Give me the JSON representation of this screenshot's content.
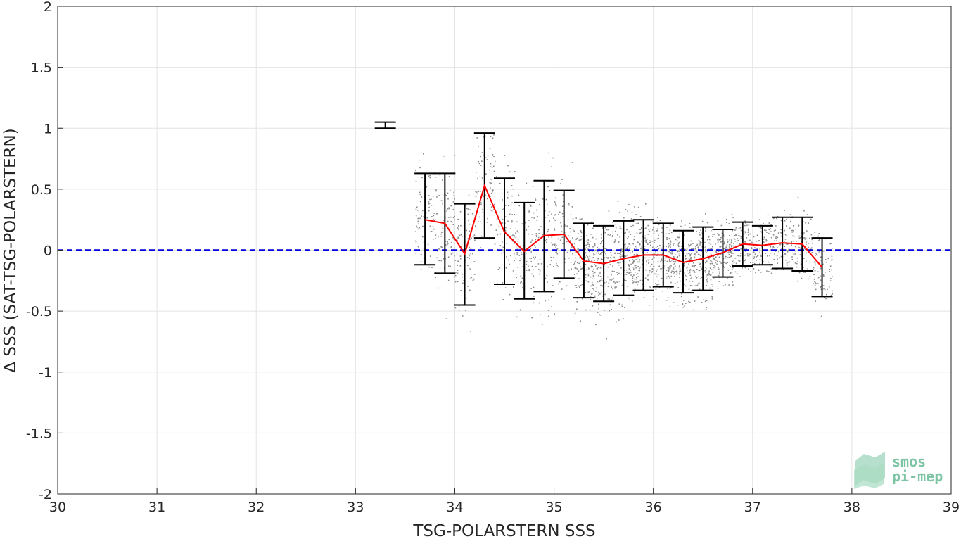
{
  "chart_data": {
    "type": "scatter",
    "xlabel": "TSG-POLARSTERN SSS",
    "ylabel": "Δ SSS (SAT-TSG-POLARSTERN)",
    "xlim": [
      30,
      39
    ],
    "ylim": [
      -2,
      2
    ],
    "x_ticks": [
      "30",
      "31",
      "32",
      "33",
      "34",
      "35",
      "36",
      "37",
      "38",
      "39"
    ],
    "y_ticks": [
      "-2",
      "-1.5",
      "-1",
      "-0.5",
      "0",
      "0.5",
      "1",
      "1.5",
      "2"
    ],
    "grid": true,
    "zero_line": {
      "y": 0,
      "color": "#0000dd",
      "style": "dashed"
    },
    "scatter_color": "#8c8c8c",
    "mean_line_color": "#ff0000",
    "errorbar_color": "#000000",
    "binned_stats": [
      {
        "x": 33.3,
        "mean": 1.02,
        "low": 1.0,
        "high": 1.05
      },
      {
        "x": 33.7,
        "mean": 0.25,
        "low": -0.12,
        "high": 0.63
      },
      {
        "x": 33.9,
        "mean": 0.22,
        "low": -0.19,
        "high": 0.63
      },
      {
        "x": 34.1,
        "mean": -0.03,
        "low": -0.45,
        "high": 0.38
      },
      {
        "x": 34.3,
        "mean": 0.53,
        "low": 0.1,
        "high": 0.96
      },
      {
        "x": 34.5,
        "mean": 0.15,
        "low": -0.28,
        "high": 0.59
      },
      {
        "x": 34.7,
        "mean": -0.01,
        "low": -0.4,
        "high": 0.39
      },
      {
        "x": 34.9,
        "mean": 0.12,
        "low": -0.34,
        "high": 0.57
      },
      {
        "x": 35.1,
        "mean": 0.13,
        "low": -0.23,
        "high": 0.49
      },
      {
        "x": 35.3,
        "mean": -0.09,
        "low": -0.39,
        "high": 0.22
      },
      {
        "x": 35.5,
        "mean": -0.11,
        "low": -0.42,
        "high": 0.2
      },
      {
        "x": 35.7,
        "mean": -0.07,
        "low": -0.37,
        "high": 0.24
      },
      {
        "x": 35.9,
        "mean": -0.04,
        "low": -0.33,
        "high": 0.25
      },
      {
        "x": 36.1,
        "mean": -0.04,
        "low": -0.3,
        "high": 0.22
      },
      {
        "x": 36.3,
        "mean": -0.1,
        "low": -0.35,
        "high": 0.16
      },
      {
        "x": 36.5,
        "mean": -0.07,
        "low": -0.33,
        "high": 0.19
      },
      {
        "x": 36.7,
        "mean": -0.02,
        "low": -0.22,
        "high": 0.17
      },
      {
        "x": 36.9,
        "mean": 0.05,
        "low": -0.13,
        "high": 0.23
      },
      {
        "x": 37.1,
        "mean": 0.04,
        "low": -0.12,
        "high": 0.2
      },
      {
        "x": 37.3,
        "mean": 0.06,
        "low": -0.15,
        "high": 0.27
      },
      {
        "x": 37.5,
        "mean": 0.05,
        "low": -0.17,
        "high": 0.27
      },
      {
        "x": 37.7,
        "mean": -0.14,
        "low": -0.38,
        "high": 0.1
      }
    ]
  },
  "logo": {
    "line1": "smos",
    "line2": "pi-mep",
    "color": "#7cc4a4"
  }
}
